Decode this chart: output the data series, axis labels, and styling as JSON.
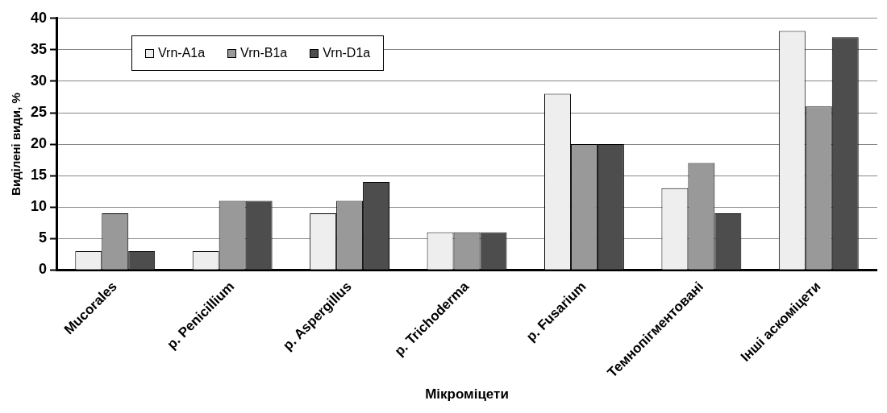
{
  "chart_data": {
    "type": "bar",
    "xlabel": "Мікроміцети",
    "ylabel": "Виділені види, %",
    "categories": [
      "Mucorales",
      "p. Penicillium",
      "p. Aspergillus",
      "p. Trichoderma",
      "p. Fusarium",
      "Темнопігментовані",
      "Інші аскоміцети"
    ],
    "series": [
      {
        "name": "Vrn-A1a",
        "color": "#eeeeee",
        "values": [
          3,
          3,
          9,
          6,
          28,
          13,
          38
        ]
      },
      {
        "name": "Vrn-B1a",
        "color": "#999999",
        "values": [
          9,
          11,
          11,
          6,
          20,
          17,
          26
        ]
      },
      {
        "name": "Vrn-D1a",
        "color": "#4d4d4d",
        "values": [
          3,
          11,
          14,
          6,
          20,
          9,
          37
        ]
      }
    ],
    "ylim": [
      0,
      40
    ],
    "yticks": [
      0,
      5,
      10,
      15,
      20,
      25,
      30,
      35,
      40
    ],
    "grid": "y",
    "legend": "top left"
  }
}
